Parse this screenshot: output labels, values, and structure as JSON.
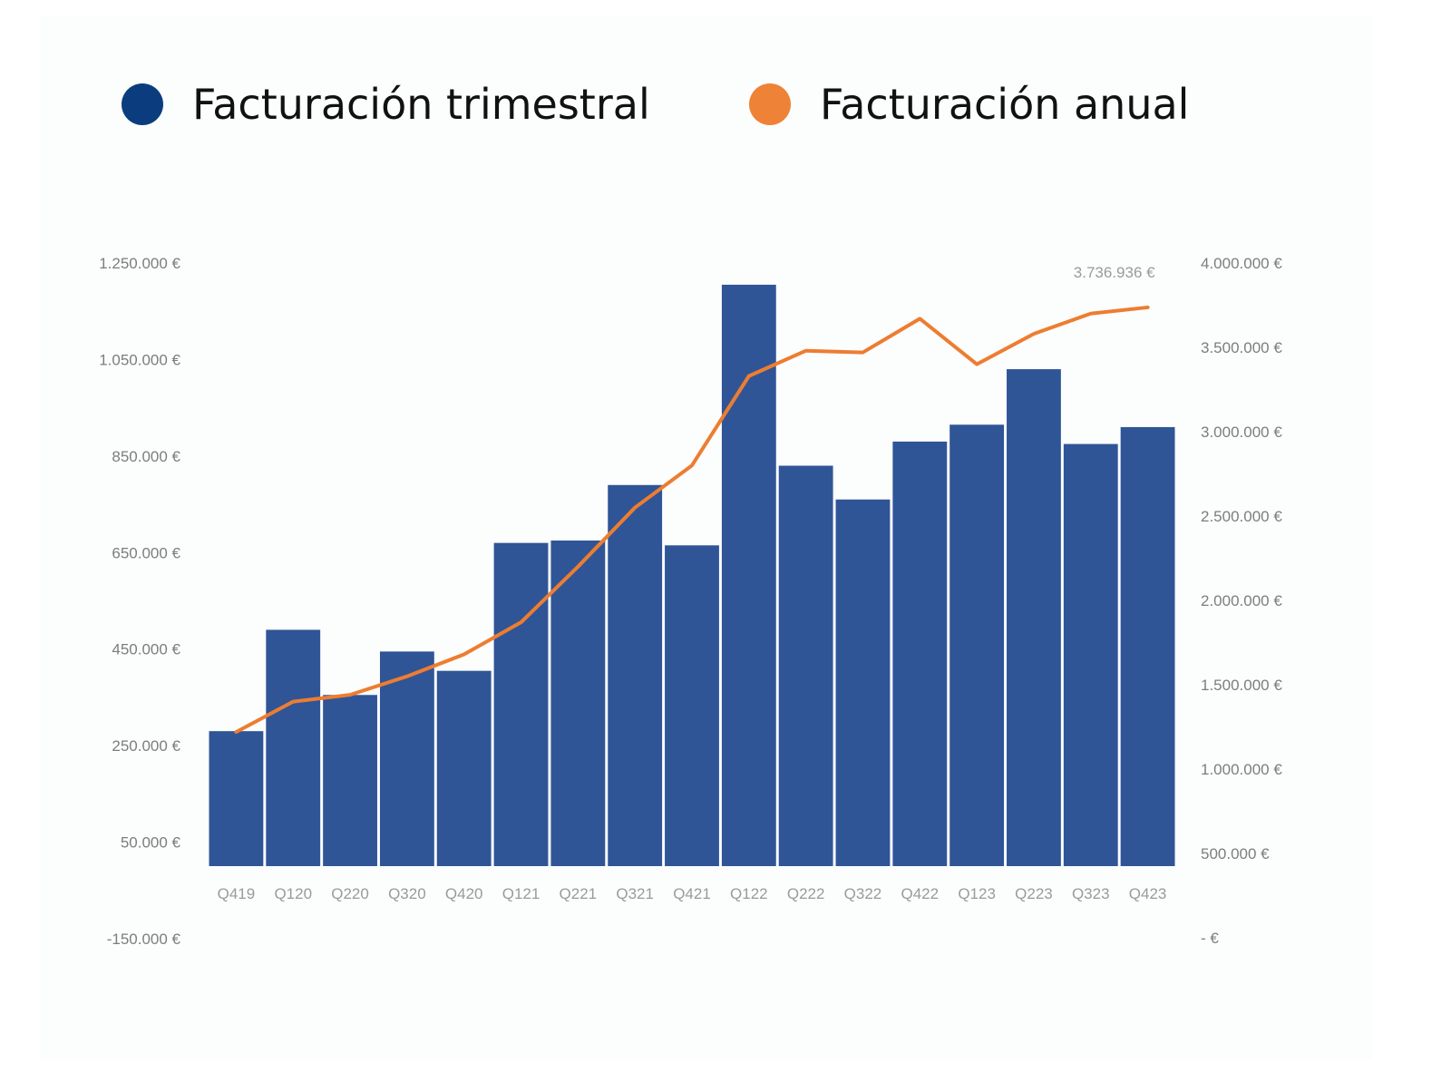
{
  "legend": {
    "quarterly_label": "Facturación trimestral",
    "annual_label": "Facturación anual"
  },
  "colors": {
    "bars": "#2f5597",
    "line": "#ed7d31",
    "legend_quarterly": "#0b3d7e",
    "legend_annual": "#ee8236"
  },
  "chart_data": {
    "type": "bar",
    "categories": [
      "Q419",
      "Q120",
      "Q220",
      "Q320",
      "Q420",
      "Q121",
      "Q221",
      "Q321",
      "Q421",
      "Q122",
      "Q222",
      "Q322",
      "Q422",
      "Q123",
      "Q223",
      "Q323",
      "Q423"
    ],
    "series": [
      {
        "name": "Facturación trimestral",
        "type": "bar",
        "axis": "left",
        "values": [
          280000,
          490000,
          355000,
          445000,
          405000,
          670000,
          675000,
          790000,
          665000,
          1205000,
          830000,
          760000,
          880000,
          915000,
          1030000,
          875000,
          910000
        ]
      },
      {
        "name": "Facturación anual",
        "type": "line",
        "axis": "right",
        "values": [
          1220000,
          1400000,
          1440000,
          1550000,
          1680000,
          1870000,
          2200000,
          2550000,
          2800000,
          3330000,
          3480000,
          3470000,
          3670000,
          3400000,
          3580000,
          3700000,
          3736936
        ]
      }
    ],
    "y_left": {
      "min": -150000,
      "max": 1250000,
      "ticks": [
        1250000,
        1050000,
        850000,
        650000,
        450000,
        250000,
        50000,
        -150000
      ],
      "tick_labels": [
        "1.250.000 €",
        "1.050.000 €",
        "850.000 €",
        "650.000 €",
        "450.000 €",
        "250.000 €",
        "50.000 €",
        "-150.000 €"
      ]
    },
    "y_right": {
      "min": 0,
      "max": 4000000,
      "ticks": [
        4000000,
        3500000,
        3000000,
        2500000,
        2000000,
        1500000,
        1000000,
        500000,
        0
      ],
      "tick_labels": [
        "4.000.000 €",
        "3.500.000 €",
        "3.000.000 €",
        "2.500.000 €",
        "2.000.000 €",
        "1.500.000 €",
        "1.000.000 €",
        "500.000 €",
        "-  €"
      ]
    },
    "annotation": {
      "text": "3.736.936 €",
      "series": 1,
      "index": 16
    },
    "grid": false,
    "legend_position": "top"
  }
}
